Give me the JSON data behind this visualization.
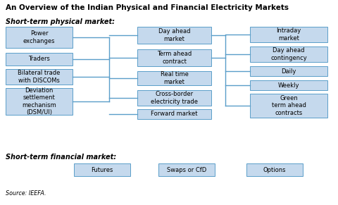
{
  "title": "An Overview of the Indian Physical and Financial Electricity Markets",
  "subtitle_physical": "Short-term physical market:",
  "subtitle_financial": "Short-term financial market:",
  "source": "Source: IEEFA.",
  "box_color": "#c5d9ed",
  "box_edge_color": "#5a9ec9",
  "line_color": "#5a9ec9",
  "bg_color": "#ffffff",
  "left_boxes": [
    "Power\nexchanges",
    "Traders",
    "Bilateral trade\nwith DISCOMs",
    "Deviation\nsettlement\nmechanism\n(DSM/UI)"
  ],
  "mid_boxes": [
    "Day ahead\nmarket",
    "Term ahead\ncontract",
    "Real time\nmarket",
    "Cross-border\nelectricity trade",
    "Forward market"
  ],
  "right_boxes": [
    "Intraday\nmarket",
    "Day ahead\ncontingency",
    "Daily",
    "Weekly",
    "Green\nterm ahead\ncontracts"
  ],
  "financial_boxes": [
    "Futures",
    "Swaps or CfD",
    "Options"
  ]
}
